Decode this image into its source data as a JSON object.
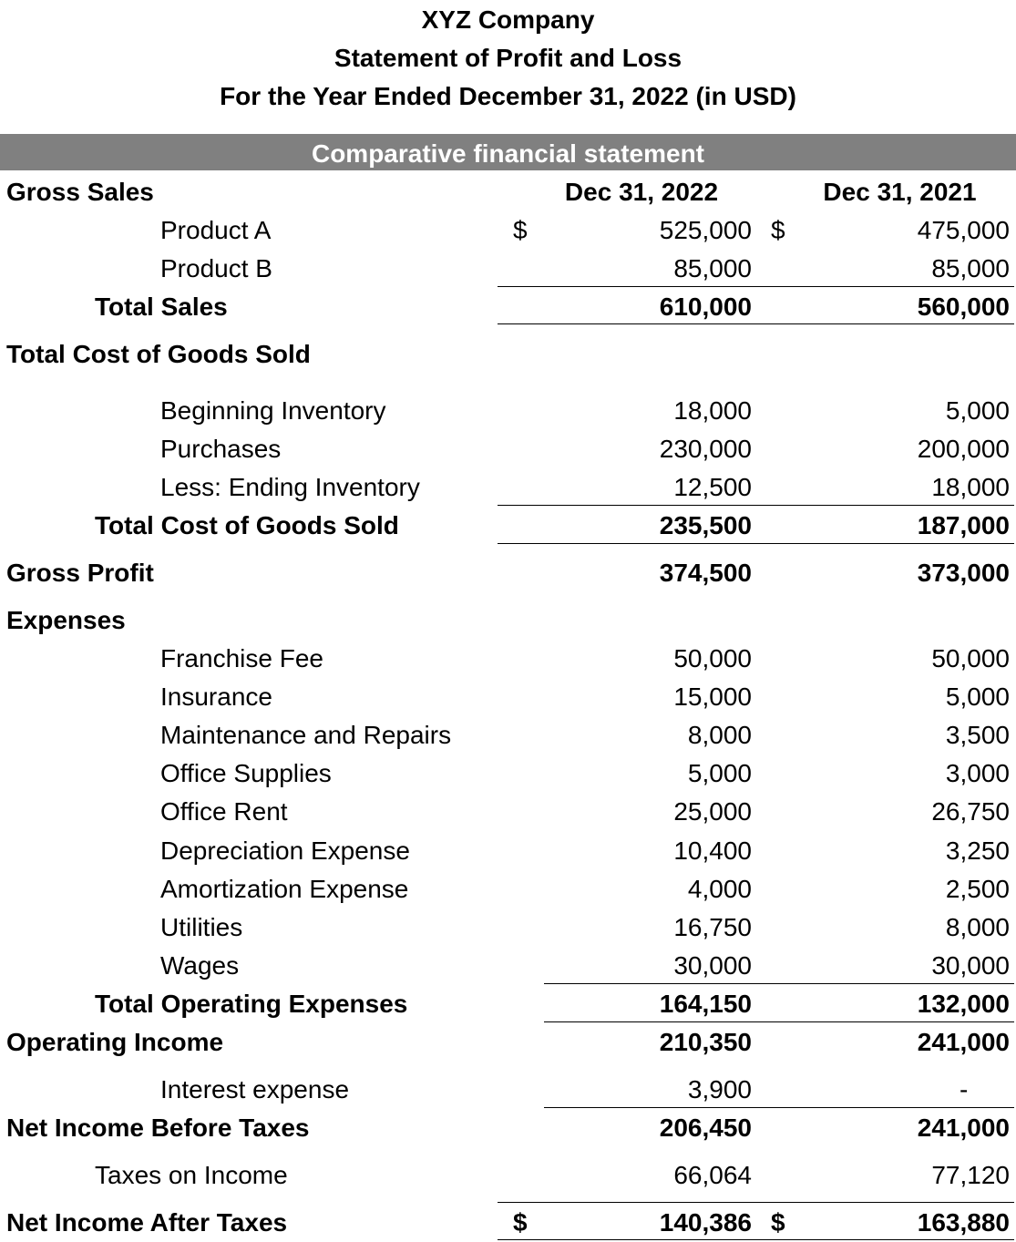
{
  "header": {
    "company": "XYZ Company",
    "statement": "Statement of Profit and Loss",
    "period": "For the Year Ended December 31, 2022 (in USD)"
  },
  "banner": "Comparative financial statement",
  "columns": {
    "current": "Dec 31, 2022",
    "prior": "Dec 31, 2021"
  },
  "currency_symbol": "$",
  "sections": {
    "gross_sales": "Gross Sales",
    "cogs_heading": "Total Cost of Goods Sold",
    "expenses_heading": "Expenses"
  },
  "sales": [
    {
      "label": "Product A",
      "current": "525,000",
      "prior": "475,000"
    },
    {
      "label": "Product B",
      "current": "85,000",
      "prior": "85,000"
    }
  ],
  "total_sales": {
    "label": "Total Sales",
    "current": "610,000",
    "prior": "560,000"
  },
  "cogs": [
    {
      "label": "Beginning Inventory",
      "current": "18,000",
      "prior": "5,000"
    },
    {
      "label": "Purchases",
      "current": "230,000",
      "prior": "200,000"
    },
    {
      "label": "Less: Ending Inventory",
      "current": "12,500",
      "prior": "18,000"
    }
  ],
  "total_cogs": {
    "label": "Total Cost of Goods Sold",
    "current": "235,500",
    "prior": "187,000"
  },
  "gross_profit": {
    "label": "Gross Profit",
    "current": "374,500",
    "prior": "373,000"
  },
  "expenses": [
    {
      "label": "Franchise Fee",
      "current": "50,000",
      "prior": "50,000"
    },
    {
      "label": "Insurance",
      "current": "15,000",
      "prior": "5,000"
    },
    {
      "label": "Maintenance and Repairs",
      "current": "8,000",
      "prior": "3,500"
    },
    {
      "label": "Office Supplies",
      "current": "5,000",
      "prior": "3,000"
    },
    {
      "label": "Office Rent",
      "current": "25,000",
      "prior": "26,750"
    },
    {
      "label": "Depreciation Expense",
      "current": "10,400",
      "prior": "3,250"
    },
    {
      "label": "Amortization Expense",
      "current": "4,000",
      "prior": "2,500"
    },
    {
      "label": "Utilities",
      "current": "16,750",
      "prior": "8,000"
    },
    {
      "label": "Wages",
      "current": "30,000",
      "prior": "30,000"
    }
  ],
  "total_expenses": {
    "label": "Total Operating Expenses",
    "current": "164,150",
    "prior": "132,000"
  },
  "operating_income": {
    "label": "Operating Income",
    "current": "210,350",
    "prior": "241,000"
  },
  "interest": {
    "label": "Interest expense",
    "current": "3,900",
    "prior": "-"
  },
  "net_before_taxes": {
    "label": "Net Income Before Taxes",
    "current": "206,450",
    "prior": "241,000"
  },
  "taxes": {
    "label": "Taxes on Income",
    "current": "66,064",
    "prior": "77,120"
  },
  "net_after_taxes": {
    "label": "Net Income After Taxes",
    "current": "140,386",
    "prior": "163,880"
  }
}
